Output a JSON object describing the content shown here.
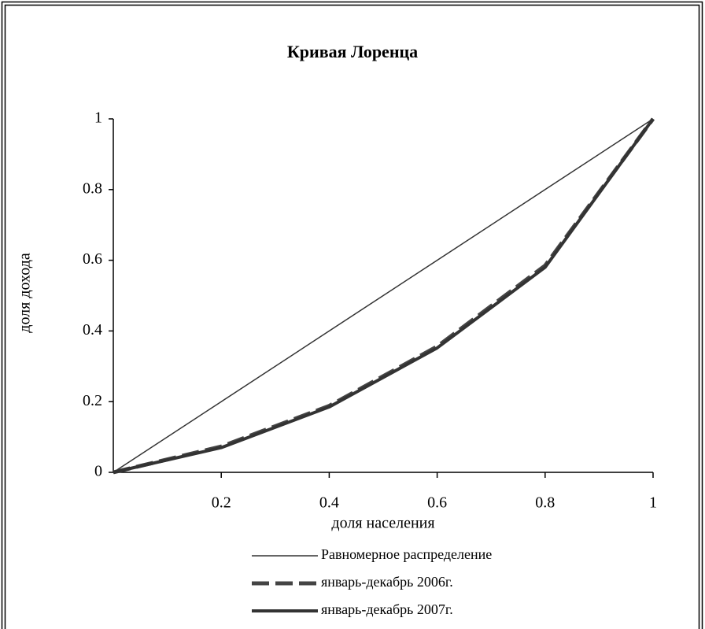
{
  "chart_data": {
    "type": "line",
    "title": "Кривая  Лоренца",
    "x_label": "доля населения",
    "y_label": "доля дохода",
    "x": [
      0,
      0.2,
      0.4,
      0.6,
      0.8,
      1
    ],
    "series": [
      {
        "name": "Равномерное распределение",
        "color": "#333333",
        "width": 1.5,
        "dash": false,
        "values": [
          0,
          0.2,
          0.4,
          0.6,
          0.8,
          1
        ]
      },
      {
        "name": "январь-декабрь 2006г.",
        "color": "#444444",
        "width": 5,
        "dash": true,
        "values": [
          0,
          0.073,
          0.188,
          0.356,
          0.585,
          1
        ]
      },
      {
        "name": "январь-декабрь 2007г.",
        "color": "#333333",
        "width": 4,
        "dash": false,
        "values": [
          0,
          0.07,
          0.185,
          0.352,
          0.58,
          1
        ]
      }
    ],
    "xlim": [
      0,
      1
    ],
    "xticks": [
      0.2,
      0.4,
      0.6,
      0.8,
      1
    ],
    "ylim": [
      0,
      1
    ],
    "yticks": [
      0,
      0.2,
      0.4,
      0.6,
      0.8,
      1
    ],
    "grid": false,
    "legend": "bottom"
  }
}
